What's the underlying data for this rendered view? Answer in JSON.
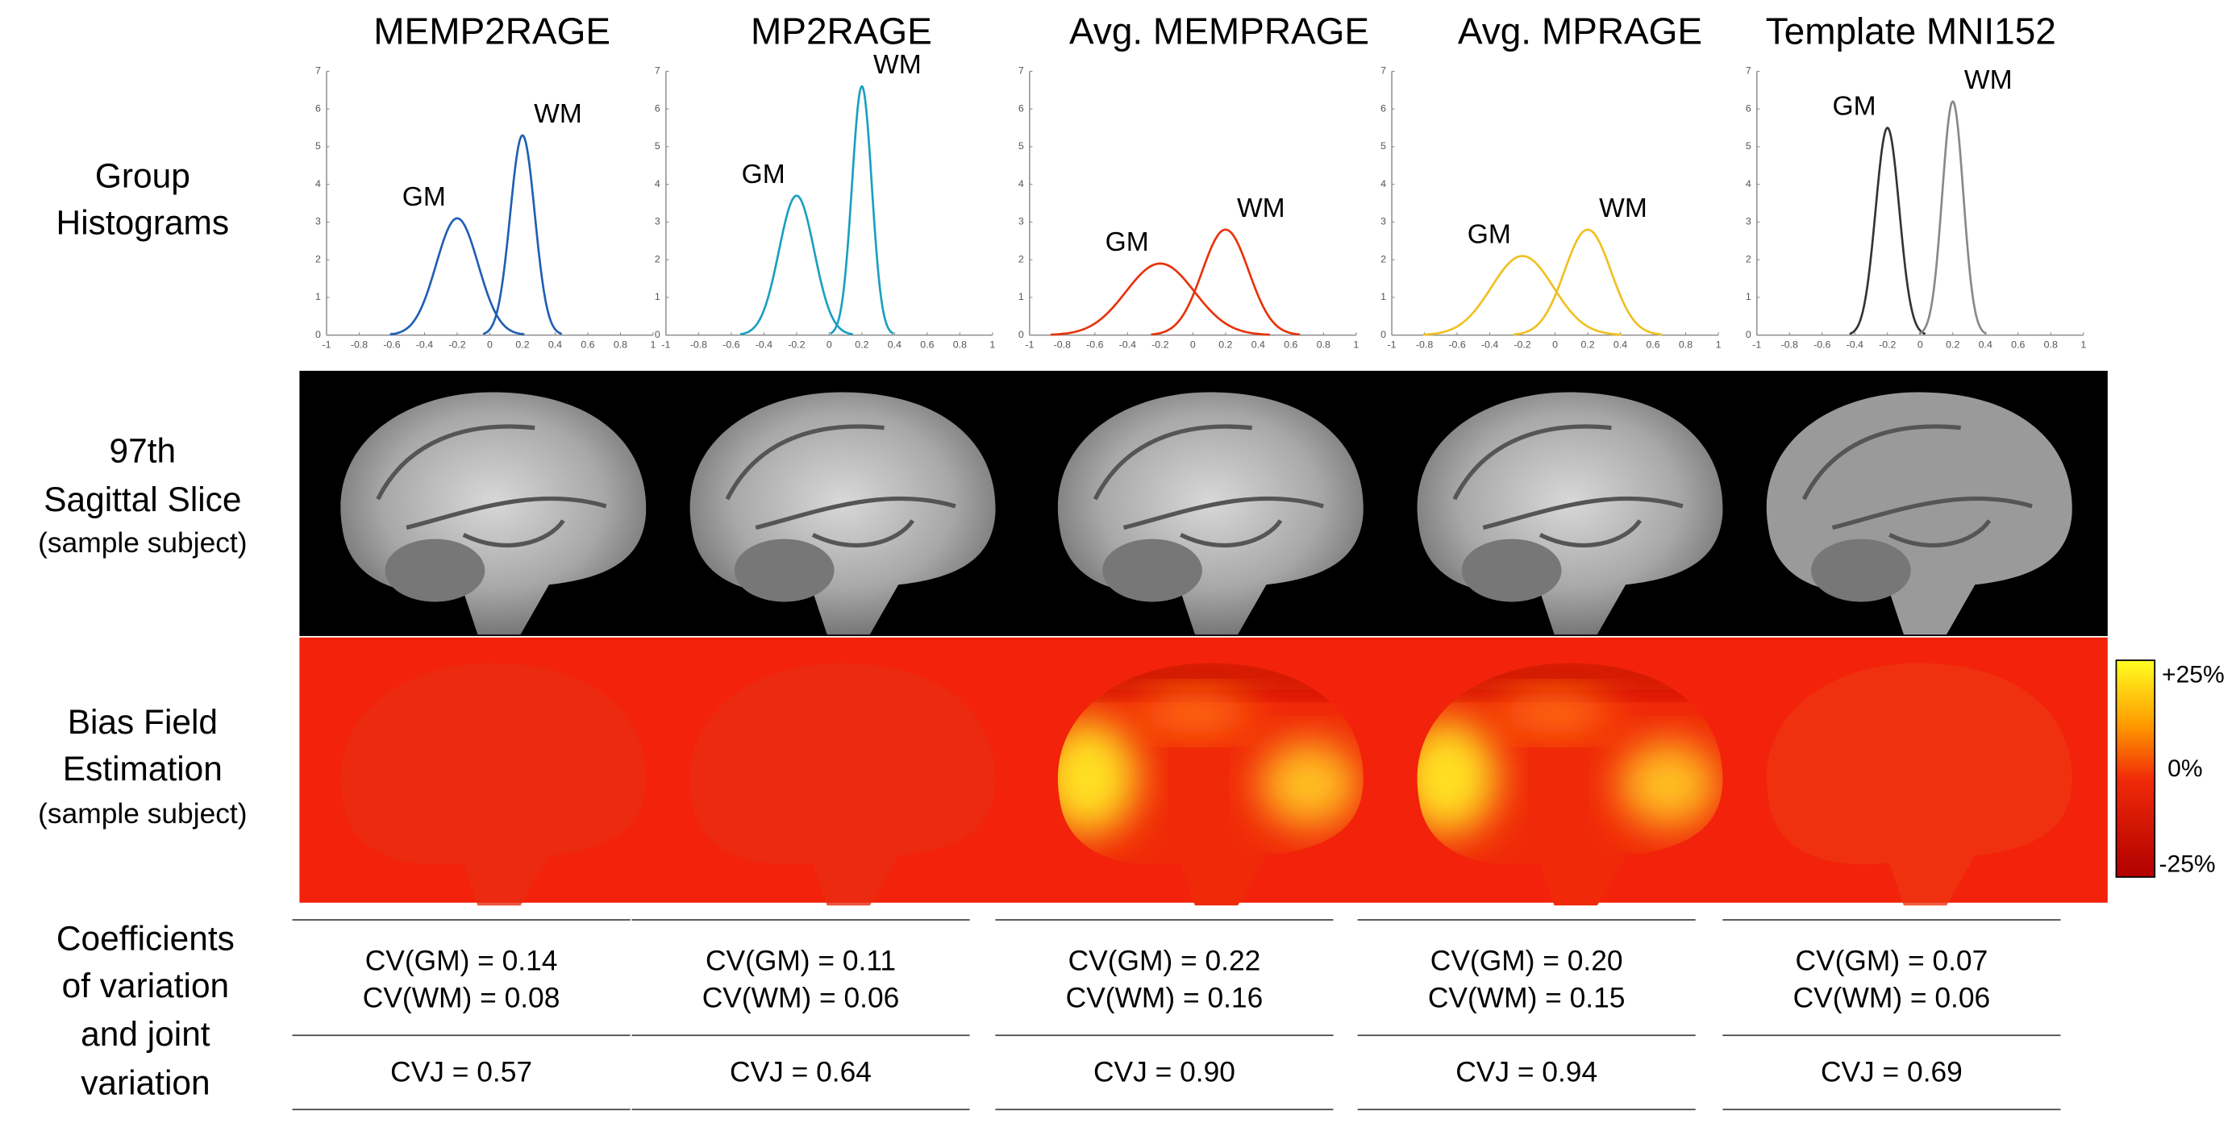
{
  "row_labels": {
    "histograms": [
      "Group",
      "Histograms"
    ],
    "slice": [
      "97th",
      "Sagittal Slice",
      "(sample subject)"
    ],
    "bias": [
      "Bias Field",
      "Estimation",
      "(sample subject)"
    ],
    "coefficients": [
      "Coefficients",
      "of variation",
      "and joint",
      "variation"
    ]
  },
  "colorbar": {
    "labels": [
      "+25%",
      "0%",
      "-25%"
    ]
  },
  "columns": [
    {
      "title": "MEMP2RAGE",
      "histogram": {
        "type": "line",
        "xlim": [
          -1,
          1
        ],
        "ylim": [
          0,
          7
        ],
        "xticks": [
          -1,
          -0.8,
          -0.6,
          -0.4,
          -0.2,
          0,
          0.2,
          0.4,
          0.6,
          0.8,
          1
        ],
        "yticks": [
          0,
          1,
          2,
          3,
          4,
          5,
          6,
          7
        ],
        "series": [
          {
            "name": "GM",
            "color": "#1f5fb4",
            "mean": -0.2,
            "peak": 3.1
          },
          {
            "name": "WM",
            "color": "#1f5fb4",
            "mean": 0.2,
            "peak": 5.3
          }
        ]
      },
      "cv": [
        "CV(GM) = 0.14",
        "CV(WM) = 0.08"
      ],
      "cvj": "CVJ = 0.57",
      "bias": false
    },
    {
      "title": "MP2RAGE",
      "histogram": {
        "type": "line",
        "xlim": [
          -1,
          1
        ],
        "ylim": [
          0,
          7
        ],
        "xticks": [
          -1,
          -0.8,
          -0.6,
          -0.4,
          -0.2,
          0,
          0.2,
          0.4,
          0.6,
          0.8,
          1
        ],
        "yticks": [
          0,
          1,
          2,
          3,
          4,
          5,
          6,
          7
        ],
        "series": [
          {
            "name": "GM",
            "color": "#1a9fc2",
            "mean": -0.2,
            "peak": 3.7
          },
          {
            "name": "WM",
            "color": "#1a9fc2",
            "mean": 0.2,
            "peak": 6.6
          }
        ]
      },
      "cv": [
        "CV(GM) = 0.11",
        "CV(WM) = 0.06"
      ],
      "cvj": "CVJ = 0.64",
      "bias": false
    },
    {
      "title": "Avg. MEMPRAGE",
      "histogram": {
        "type": "line",
        "xlim": [
          -1,
          1
        ],
        "ylim": [
          0,
          7
        ],
        "xticks": [
          -1,
          -0.8,
          -0.6,
          -0.4,
          -0.2,
          0,
          0.2,
          0.4,
          0.6,
          0.8,
          1
        ],
        "yticks": [
          0,
          1,
          2,
          3,
          4,
          5,
          6,
          7
        ],
        "series": [
          {
            "name": "GM",
            "color": "#e8320a",
            "mean": -0.2,
            "peak": 1.9
          },
          {
            "name": "WM",
            "color": "#e8320a",
            "mean": 0.2,
            "peak": 2.8
          }
        ]
      },
      "cv": [
        "CV(GM) = 0.22",
        "CV(WM) = 0.16"
      ],
      "cvj": "CVJ = 0.90",
      "bias": true
    },
    {
      "title": "Avg. MPRAGE",
      "histogram": {
        "type": "line",
        "xlim": [
          -1,
          1
        ],
        "ylim": [
          0,
          7
        ],
        "xticks": [
          -1,
          -0.8,
          -0.6,
          -0.4,
          -0.2,
          0,
          0.2,
          0.4,
          0.6,
          0.8,
          1
        ],
        "yticks": [
          0,
          1,
          2,
          3,
          4,
          5,
          6,
          7
        ],
        "series": [
          {
            "name": "GM",
            "color": "#f0c020",
            "mean": -0.2,
            "peak": 2.1
          },
          {
            "name": "WM",
            "color": "#f0c020",
            "mean": 0.2,
            "peak": 2.8
          }
        ]
      },
      "cv": [
        "CV(GM) = 0.20",
        "CV(WM) = 0.15"
      ],
      "cvj": "CVJ = 0.94",
      "bias": true
    },
    {
      "title": "Template MNI152",
      "histogram": {
        "type": "line",
        "xlim": [
          -1,
          1
        ],
        "ylim": [
          0,
          7
        ],
        "xticks": [
          -1,
          -0.8,
          -0.6,
          -0.4,
          -0.2,
          0,
          0.2,
          0.4,
          0.6,
          0.8,
          1
        ],
        "yticks": [
          0,
          1,
          2,
          3,
          4,
          5,
          6,
          7
        ],
        "series": [
          {
            "name": "GM",
            "color": "#333333",
            "mean": -0.2,
            "peak": 5.5
          },
          {
            "name": "WM",
            "color": "#888888",
            "mean": 0.2,
            "peak": 6.2
          }
        ]
      },
      "cv": [
        "CV(GM) = 0.07",
        "CV(WM) = 0.06"
      ],
      "cvj": "CVJ = 0.69",
      "bias": false
    }
  ]
}
